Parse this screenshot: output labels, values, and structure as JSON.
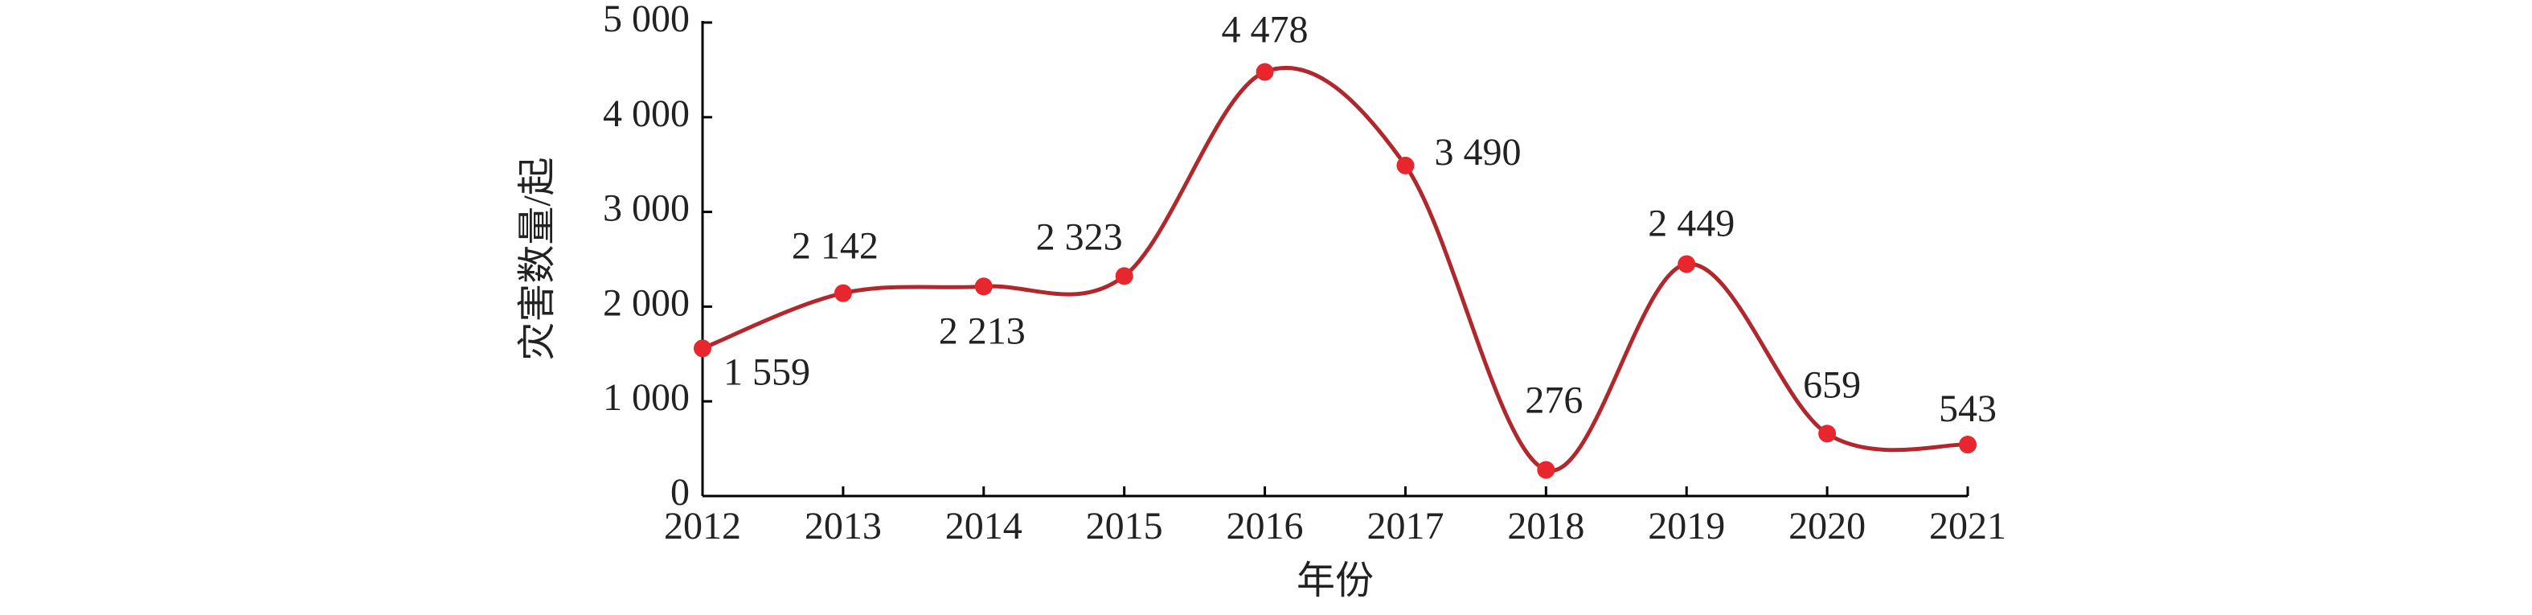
{
  "chart_data": {
    "type": "line",
    "x_label": "年份",
    "y_label": "灾害数量/起",
    "x": [
      2012,
      2013,
      2014,
      2015,
      2016,
      2017,
      2018,
      2019,
      2020,
      2021
    ],
    "xlim": [
      2012,
      2021
    ],
    "xticks": [
      2012,
      2013,
      2014,
      2015,
      2016,
      2017,
      2018,
      2019,
      2020,
      2021
    ],
    "ylim": [
      0,
      5000
    ],
    "yticks": [
      0,
      {
        "value": 1000,
        "label": "1 000"
      },
      {
        "value": 2000,
        "label": "2 000"
      },
      {
        "value": 3000,
        "label": "3 000"
      },
      {
        "value": 4000,
        "label": "4 000"
      },
      {
        "value": 5000,
        "label": "5 000"
      }
    ],
    "grid": false,
    "series": [
      {
        "color": "#b0282e",
        "marker_color": "#e8262d",
        "values": [
          1559,
          2142,
          2213,
          2323,
          4478,
          3490,
          276,
          2449,
          659,
          543
        ],
        "value_labels": [
          "1 559",
          "2 142",
          "2 213",
          "2 323",
          "4 478",
          "3 490",
          "276",
          "2 449",
          "659",
          "543"
        ]
      }
    ]
  }
}
